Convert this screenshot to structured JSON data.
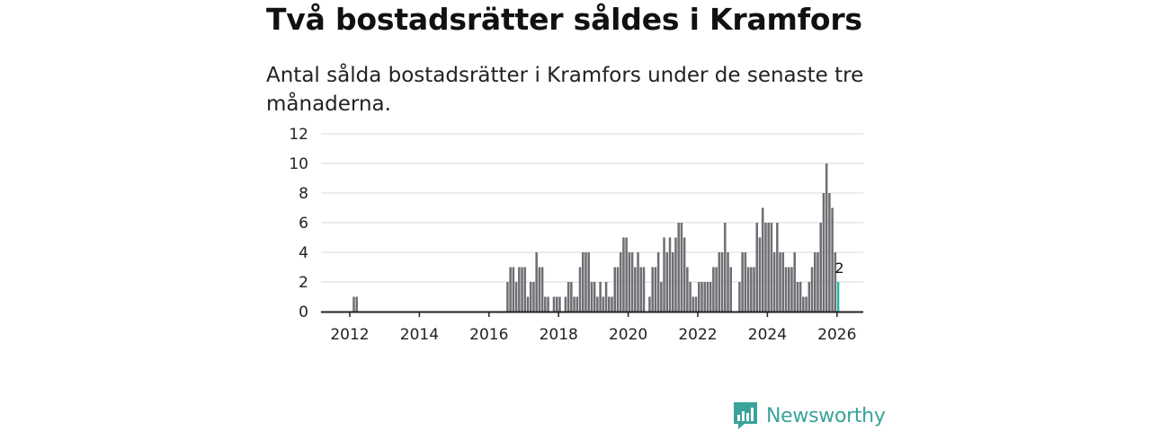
{
  "header": {
    "title": "Två bostadsrätter såldes i Kramfors",
    "subtitle": "Antal sålda bostadsrätter i Kramfors under de senaste tre månaderna."
  },
  "brand": {
    "name": "Newsworthy",
    "color": "#3aa39a"
  },
  "colors": {
    "bar": "#6e6e73",
    "highlight": "#24b5a5",
    "grid": "#d9d9d9",
    "axis": "#222222"
  },
  "chart_data": {
    "type": "bar",
    "title": "Antal sålda bostadsrätter i Kramfors under de senaste tre månaderna.",
    "xlabel": "",
    "ylabel": "",
    "ylim": [
      0,
      12
    ],
    "yticks": [
      "0",
      "2",
      "4",
      "6",
      "8",
      "10",
      "12"
    ],
    "xticks": [
      {
        "label": "2012",
        "year": 2012
      },
      {
        "label": "2014",
        "year": 2014
      },
      {
        "label": "2016",
        "year": 2016
      },
      {
        "label": "2018",
        "year": 2018
      },
      {
        "label": "2020",
        "year": 2020
      },
      {
        "label": "2022",
        "year": 2022
      },
      {
        "label": "2024",
        "year": 2024
      },
      {
        "label": "2026",
        "year": 2026
      }
    ],
    "start": {
      "year": 2011,
      "month": 7
    },
    "note": "Each value is one month, starting Jul 2011; last value highlighted and labelled.",
    "values": [
      0,
      0,
      0,
      0,
      0,
      0,
      0,
      1,
      1,
      0,
      0,
      0,
      0,
      0,
      0,
      0,
      0,
      0,
      0,
      0,
      0,
      0,
      0,
      0,
      0,
      0,
      0,
      0,
      0,
      0,
      0,
      0,
      0,
      0,
      0,
      0,
      0,
      0,
      0,
      0,
      0,
      0,
      0,
      0,
      0,
      0,
      0,
      0,
      0,
      0,
      0,
      0,
      0,
      0,
      0,
      0,
      0,
      0,
      0,
      0,
      2,
      3,
      3,
      2,
      3,
      3,
      3,
      1,
      2,
      2,
      4,
      3,
      3,
      1,
      1,
      0,
      1,
      1,
      1,
      0,
      1,
      2,
      2,
      1,
      1,
      3,
      4,
      4,
      4,
      2,
      2,
      1,
      2,
      1,
      2,
      1,
      1,
      3,
      3,
      4,
      5,
      5,
      4,
      4,
      3,
      4,
      3,
      3,
      0,
      1,
      3,
      3,
      4,
      2,
      5,
      4,
      5,
      4,
      5,
      6,
      6,
      5,
      3,
      2,
      1,
      1,
      2,
      2,
      2,
      2,
      2,
      3,
      3,
      4,
      4,
      6,
      4,
      3,
      0,
      0,
      2,
      4,
      4,
      3,
      3,
      3,
      6,
      5,
      7,
      6,
      6,
      6,
      4,
      6,
      4,
      4,
      3,
      3,
      3,
      4,
      2,
      2,
      1,
      1,
      2,
      3,
      4,
      4,
      6,
      8,
      10,
      8,
      7,
      4,
      2
    ],
    "last_label": "2"
  }
}
